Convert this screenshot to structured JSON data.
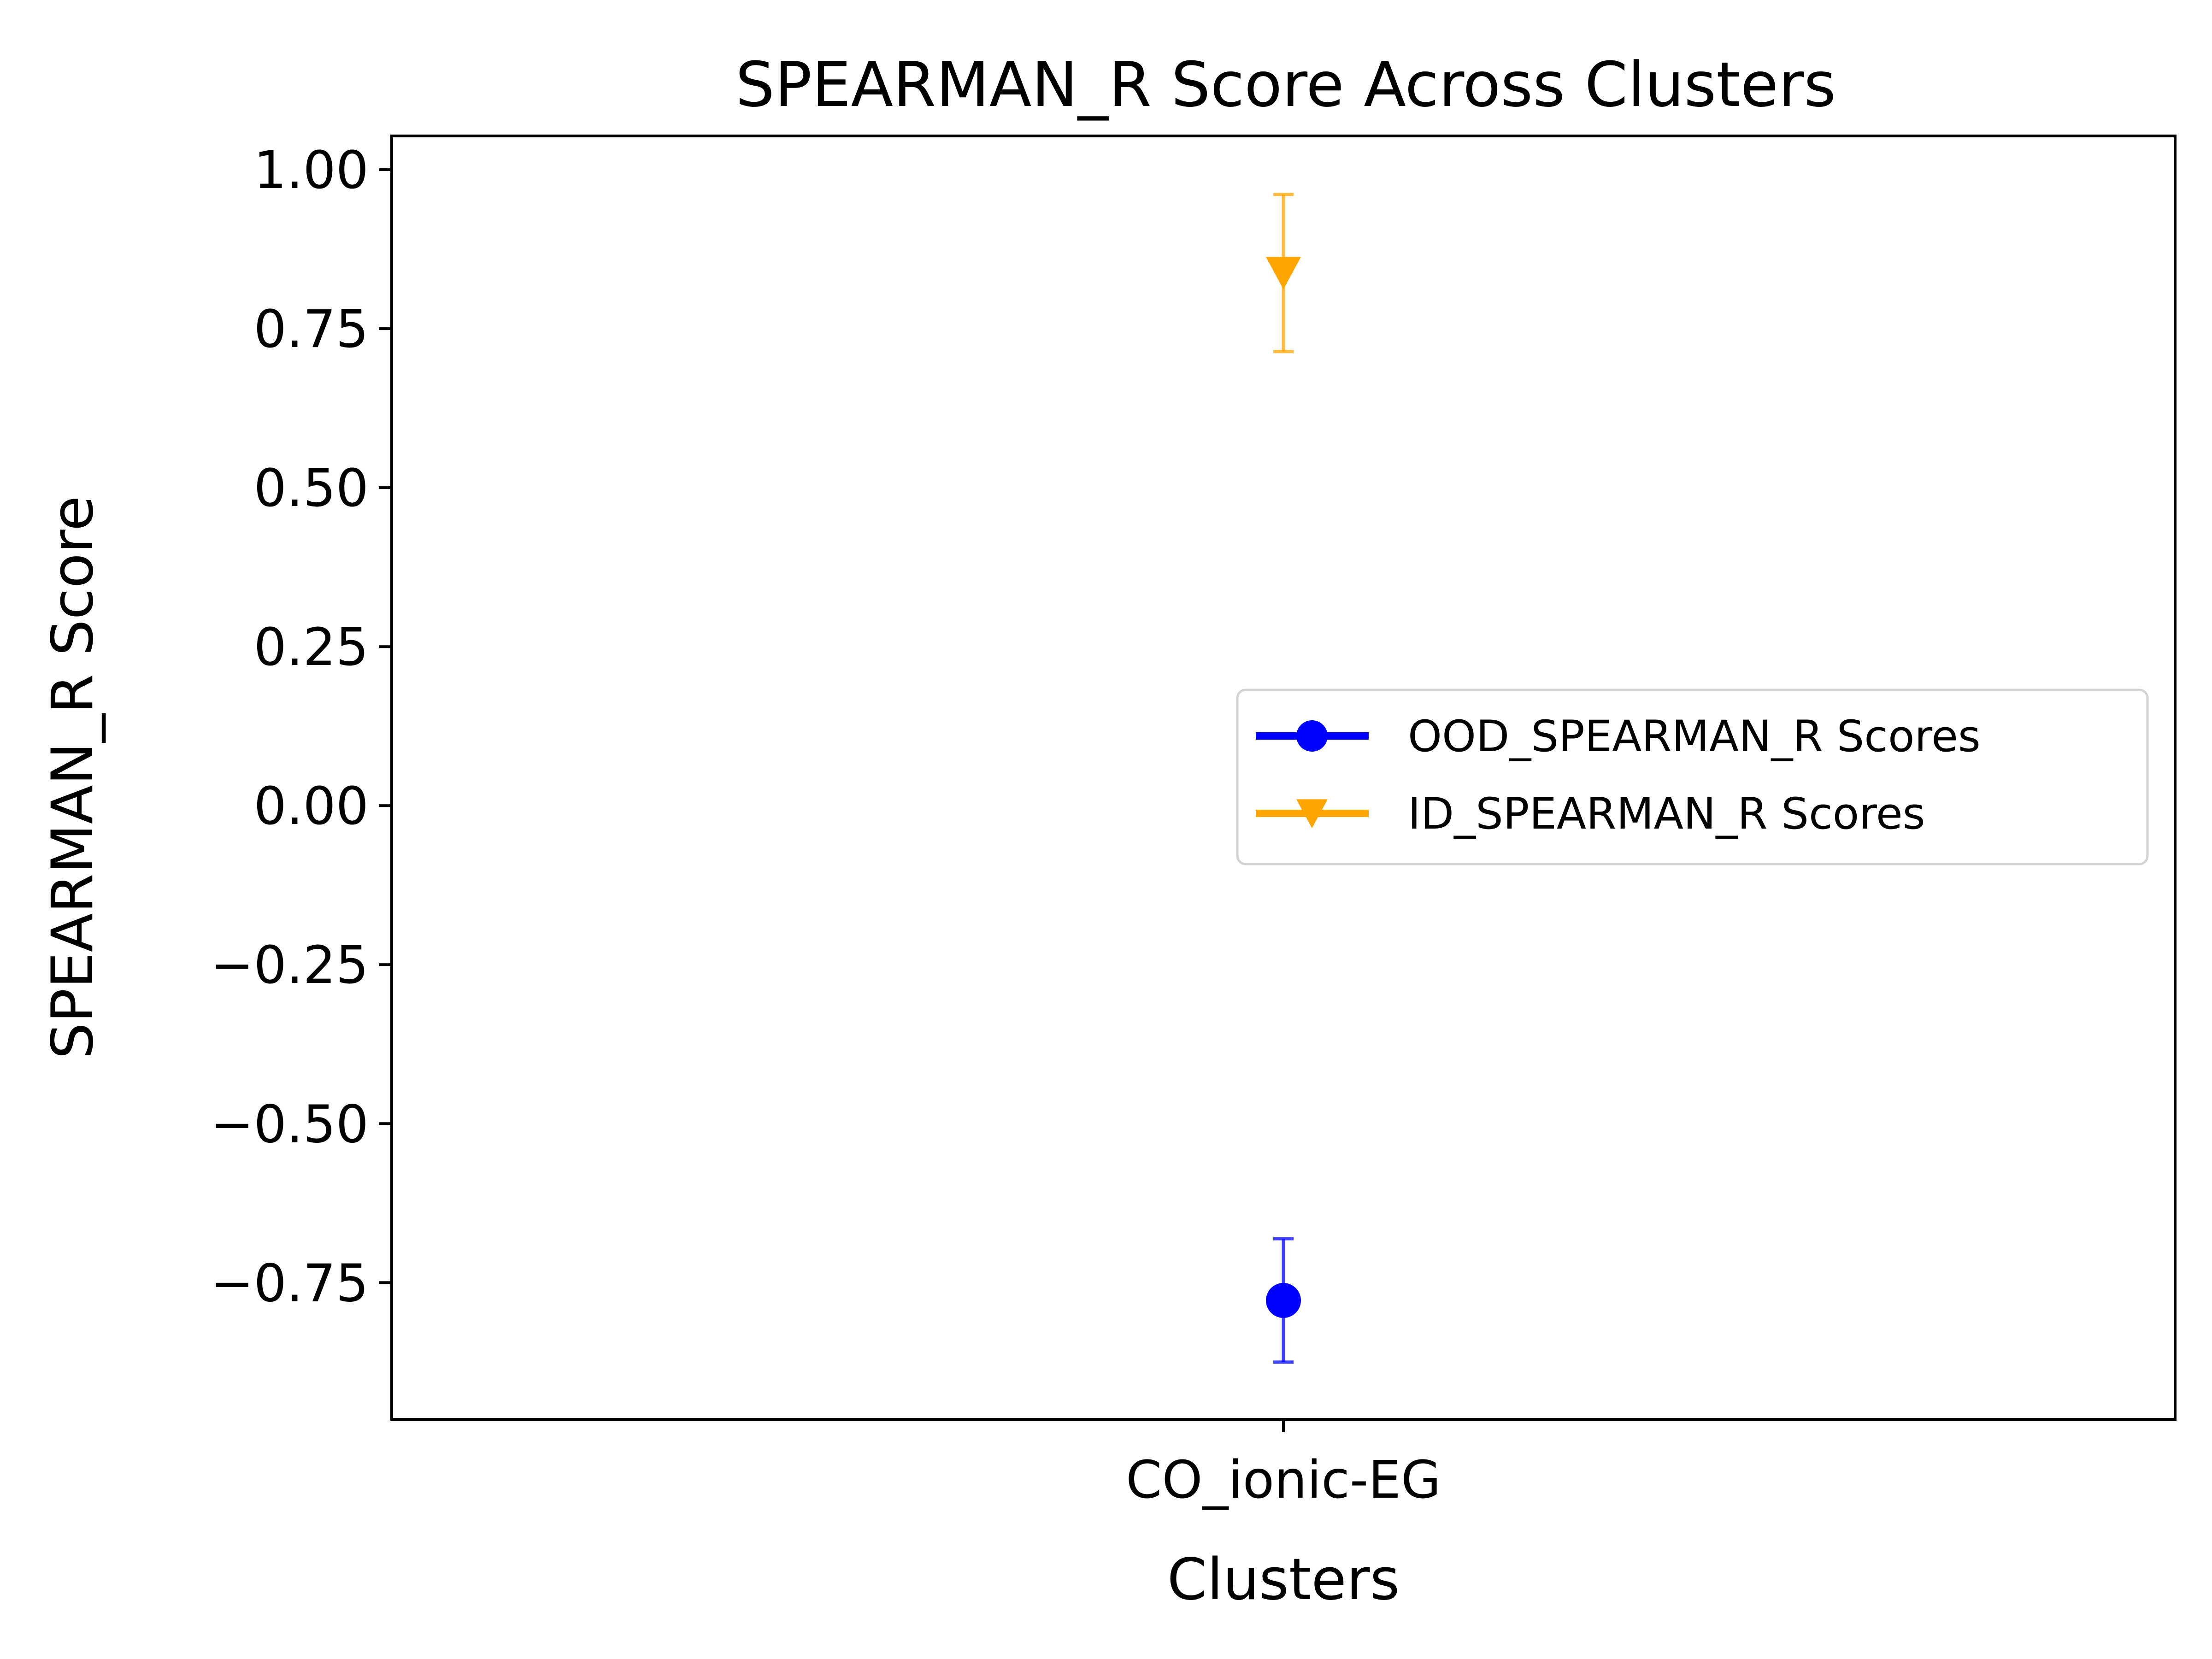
{
  "chart_data": {
    "type": "scatter",
    "title": "SPEARMAN_R Score Across Clusters",
    "xlabel": "Clusters",
    "ylabel": "SPEARMAN_R Score",
    "categories": [
      "CO_ionic-EG"
    ],
    "ylim": [
      -0.965,
      1.053
    ],
    "yticks": [
      1.0,
      0.75,
      0.5,
      0.25,
      0.0,
      -0.25,
      -0.5,
      -0.75
    ],
    "ytick_labels": [
      "1.00",
      "0.75",
      "0.50",
      "0.25",
      "0.00",
      "−0.25",
      "−0.50",
      "−0.75"
    ],
    "grid": false,
    "legend_position": "center-right",
    "series": [
      {
        "name": "OOD_SPEARMAN_R Scores",
        "color": "#0000ff",
        "marker": "circle",
        "values": [
          -0.778
        ],
        "error_low": [
          -0.875
        ],
        "error_high": [
          -0.681
        ]
      },
      {
        "name": "ID_SPEARMAN_R Scores",
        "color": "#ffa500",
        "marker": "triangle-down",
        "values": [
          0.838
        ],
        "error_low": [
          0.714
        ],
        "error_high": [
          0.961
        ]
      }
    ]
  }
}
